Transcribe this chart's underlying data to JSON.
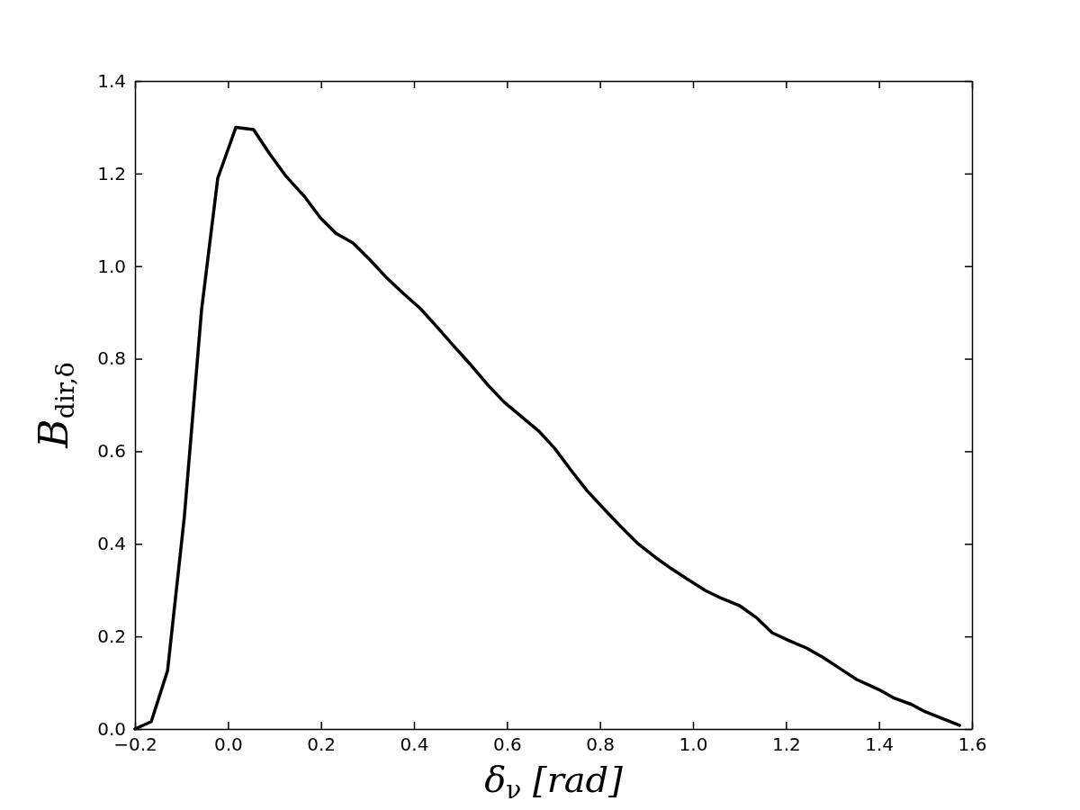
{
  "chart_data": {
    "type": "line",
    "xlabel": "δ$_{ν}$ [rad]",
    "ylabel": "B$_{dir,δ}$",
    "xlim": [
      -0.2,
      1.6
    ],
    "ylim": [
      0,
      1.4
    ],
    "xticks": [
      {
        "value": -0.2,
        "label": "−0.2"
      },
      {
        "value": 0,
        "label": "0.0"
      },
      0.2,
      0.4,
      0.6,
      0.8,
      {
        "value": 1,
        "label": "1.0"
      },
      1.2,
      1.4,
      1.6
    ],
    "yticks": [
      {
        "value": 0,
        "label": "0.0"
      },
      0.2,
      0.4,
      0.6,
      0.8,
      {
        "value": 1,
        "label": "1.0"
      },
      1.2,
      1.4
    ],
    "grid": false,
    "marker": "none",
    "line_style": "solid",
    "series": [
      {
        "color": "#000000",
        "x": [
          -0.2,
          -0.165,
          -0.13,
          -0.094,
          -0.057,
          -0.022,
          0.017,
          0.055,
          0.09,
          0.125,
          0.164,
          0.199,
          0.232,
          0.269,
          0.304,
          0.342,
          0.377,
          0.414,
          0.451,
          0.485,
          0.52,
          0.559,
          0.594,
          0.631,
          0.668,
          0.702,
          0.737,
          0.772,
          0.81,
          0.845,
          0.88,
          0.919,
          0.954,
          0.989,
          1.027,
          1.062,
          1.101,
          1.136,
          1.17,
          1.209,
          1.244,
          1.279,
          1.317,
          1.352,
          1.4,
          1.43,
          1.47,
          1.5,
          1.54,
          1.573
        ],
        "values": [
          0,
          0.016,
          0.126,
          0.457,
          0.904,
          1.19,
          1.3,
          1.295,
          1.242,
          1.194,
          1.151,
          1.104,
          1.071,
          1.05,
          1.015,
          0.974,
          0.941,
          0.908,
          0.867,
          0.828,
          0.789,
          0.743,
          0.706,
          0.675,
          0.644,
          0.607,
          0.56,
          0.515,
          0.474,
          0.437,
          0.402,
          0.371,
          0.346,
          0.323,
          0.299,
          0.282,
          0.266,
          0.241,
          0.208,
          0.19,
          0.175,
          0.155,
          0.13,
          0.107,
          0.085,
          0.068,
          0.053,
          0.037,
          0.021,
          0.008
        ]
      }
    ]
  }
}
